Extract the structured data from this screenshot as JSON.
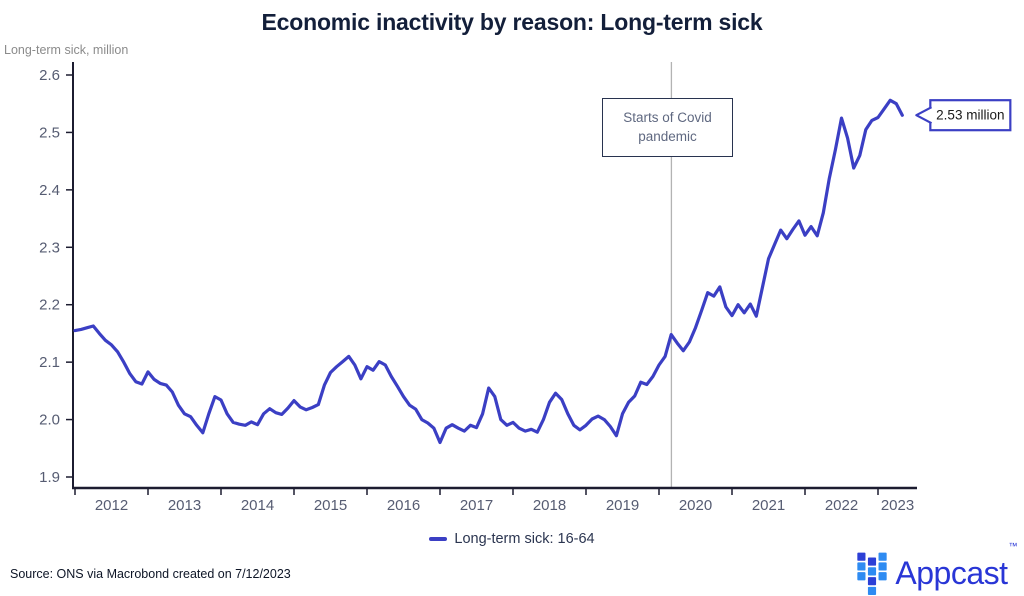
{
  "title": "Economic inactivity by reason: Long-term sick",
  "y_axis_label": "Long-term sick, million",
  "source": "Source: ONS via Macrobond created on 7/12/2023",
  "legend": {
    "label": "Long-term sick: 16-64"
  },
  "annotations": {
    "covid": {
      "line1": "Starts of Covid",
      "line2": "pandemic",
      "x_year": 2020.17
    },
    "callout": {
      "text": "2.53 million"
    }
  },
  "logo": {
    "text": "Appcast",
    "tm": "™",
    "icon": "appcast-squares-icon"
  },
  "colors": {
    "line": "#3b3fc4",
    "axis": "#1c1c30",
    "covid_line": "#b3b3b3",
    "tick_label": "#565c72",
    "title": "#131f3a",
    "callout_border": "#3b3fc4",
    "annotation_border": "#28334f",
    "logo_dark_blue": "#2c3fd6",
    "logo_light_blue": "#2e8bf2",
    "logo_text_blue": "#2936d6"
  },
  "chart_data": {
    "type": "line",
    "title": "Economic inactivity by reason: Long-term sick",
    "xlabel": "",
    "ylabel": "Long-term sick, million",
    "ylim": [
      1.9,
      2.6
    ],
    "y_ticks": [
      1.9,
      2.0,
      2.1,
      2.2,
      2.3,
      2.4,
      2.5,
      2.6
    ],
    "x_tick_years": [
      2012,
      2013,
      2014,
      2015,
      2016,
      2017,
      2018,
      2019,
      2020,
      2021,
      2022,
      2023
    ],
    "x_range_years": [
      2012.0,
      2023.53
    ],
    "grid": false,
    "legend_position": "bottom-center",
    "covid_line_x_year": 2020.17,
    "last_value_label": "2.53 million",
    "series": [
      {
        "name": "Long-term sick: 16-64",
        "color": "#3b3fc4",
        "x_start": "2012-01",
        "x_interval": "monthly",
        "values": [
          2.155,
          2.157,
          2.16,
          2.163,
          2.15,
          2.138,
          2.13,
          2.118,
          2.1,
          2.08,
          2.066,
          2.062,
          2.083,
          2.07,
          2.063,
          2.06,
          2.048,
          2.025,
          2.01,
          2.005,
          1.99,
          1.977,
          2.01,
          2.04,
          2.034,
          2.01,
          1.995,
          1.992,
          1.99,
          1.996,
          1.991,
          2.01,
          2.019,
          2.012,
          2.009,
          2.02,
          2.033,
          2.022,
          2.017,
          2.021,
          2.026,
          2.06,
          2.082,
          2.092,
          2.101,
          2.11,
          2.095,
          2.071,
          2.092,
          2.086,
          2.101,
          2.095,
          2.075,
          2.058,
          2.04,
          2.025,
          2.018,
          2.0,
          1.994,
          1.985,
          1.96,
          1.985,
          1.991,
          1.985,
          1.98,
          1.99,
          1.986,
          2.01,
          2.055,
          2.04,
          2.0,
          1.99,
          1.995,
          1.985,
          1.98,
          1.983,
          1.978,
          2.0,
          2.03,
          2.046,
          2.035,
          2.01,
          1.99,
          1.982,
          1.99,
          2.001,
          2.006,
          2.0,
          1.988,
          1.972,
          2.01,
          2.03,
          2.041,
          2.065,
          2.061,
          2.075,
          2.095,
          2.11,
          2.148,
          2.133,
          2.12,
          2.135,
          2.16,
          2.19,
          2.221,
          2.215,
          2.231,
          2.196,
          2.181,
          2.2,
          2.186,
          2.201,
          2.18,
          2.23,
          2.28,
          2.305,
          2.33,
          2.315,
          2.331,
          2.346,
          2.321,
          2.336,
          2.32,
          2.36,
          2.42,
          2.47,
          2.525,
          2.49,
          2.438,
          2.46,
          2.505,
          2.521,
          2.526,
          2.541,
          2.556,
          2.55,
          2.53
        ]
      }
    ]
  }
}
